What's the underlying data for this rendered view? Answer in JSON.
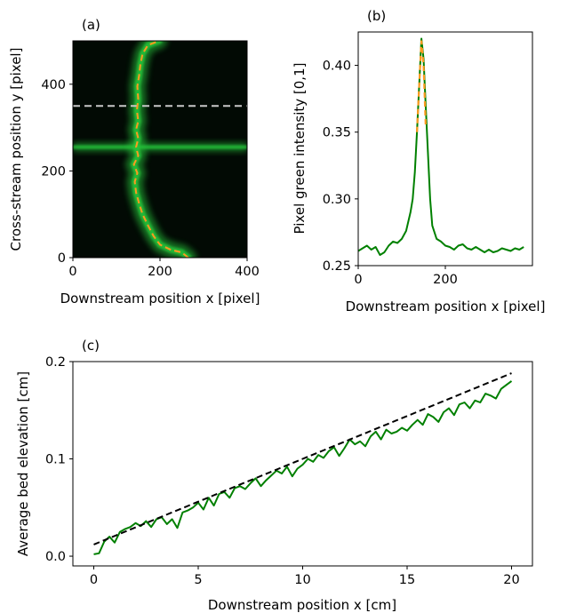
{
  "chart_data": [
    {
      "panel": "(a)",
      "type": "heatmap",
      "xlabel": "Downstream position  x  [pixel]",
      "ylabel": "Cross-stream position  y  [pixel]",
      "xlim": [
        0,
        400
      ],
      "ylim": [
        0,
        500
      ],
      "xticks": [
        0,
        200,
        400
      ],
      "yticks": [
        0,
        200,
        400
      ],
      "colors": {
        "background": "#020a04",
        "glow": "#27c43a",
        "channel": "#ff9a1f",
        "cut_line": "#c8c8c8"
      },
      "horizontal_band_y": 255,
      "cut_line_y": 350,
      "channel_path": [
        {
          "x": 265,
          "y": 0
        },
        {
          "x": 250,
          "y": 12
        },
        {
          "x": 225,
          "y": 18
        },
        {
          "x": 200,
          "y": 30
        },
        {
          "x": 185,
          "y": 50
        },
        {
          "x": 172,
          "y": 75
        },
        {
          "x": 160,
          "y": 100
        },
        {
          "x": 152,
          "y": 125
        },
        {
          "x": 145,
          "y": 150
        },
        {
          "x": 142,
          "y": 175
        },
        {
          "x": 148,
          "y": 195
        },
        {
          "x": 140,
          "y": 215
        },
        {
          "x": 150,
          "y": 235
        },
        {
          "x": 145,
          "y": 255
        },
        {
          "x": 150,
          "y": 275
        },
        {
          "x": 145,
          "y": 295
        },
        {
          "x": 150,
          "y": 315
        },
        {
          "x": 147,
          "y": 340
        },
        {
          "x": 150,
          "y": 365
        },
        {
          "x": 148,
          "y": 395
        },
        {
          "x": 152,
          "y": 420
        },
        {
          "x": 155,
          "y": 445
        },
        {
          "x": 160,
          "y": 470
        },
        {
          "x": 172,
          "y": 490
        },
        {
          "x": 198,
          "y": 500
        }
      ]
    },
    {
      "panel": "(b)",
      "type": "line",
      "xlabel": "Downstream position  x  [pixel]",
      "ylabel": "Pixel green intensity  [0,1]",
      "xlim": [
        0,
        400
      ],
      "ylim": [
        0.25,
        0.425
      ],
      "xticks": [
        0,
        200
      ],
      "yticks": [
        0.25,
        0.3,
        0.35,
        0.4
      ],
      "series": [
        {
          "color": "#008000",
          "style": "solid",
          "x": [
            0,
            10,
            20,
            30,
            40,
            50,
            60,
            70,
            80,
            90,
            100,
            110,
            120,
            125,
            130,
            135,
            140,
            145,
            150,
            155,
            160,
            165,
            170,
            180,
            190,
            200,
            210,
            220,
            230,
            240,
            250,
            260,
            270,
            280,
            290,
            300,
            310,
            320,
            330,
            340,
            350,
            360,
            370,
            380
          ],
          "y": [
            0.261,
            0.263,
            0.265,
            0.262,
            0.264,
            0.258,
            0.26,
            0.265,
            0.268,
            0.267,
            0.27,
            0.276,
            0.29,
            0.3,
            0.32,
            0.35,
            0.385,
            0.42,
            0.405,
            0.37,
            0.335,
            0.3,
            0.28,
            0.27,
            0.268,
            0.265,
            0.264,
            0.262,
            0.265,
            0.266,
            0.263,
            0.262,
            0.264,
            0.262,
            0.26,
            0.262,
            0.26,
            0.261,
            0.263,
            0.262,
            0.261,
            0.263,
            0.262,
            0.264
          ]
        },
        {
          "color": "#ff9a1f",
          "style": "dashed",
          "x": [
            135,
            140,
            145,
            150,
            155
          ],
          "y": [
            0.35,
            0.385,
            0.418,
            0.4,
            0.355
          ]
        }
      ]
    },
    {
      "panel": "(c)",
      "type": "line",
      "xlabel": "Downstream position  x  [cm]",
      "ylabel": "Average bed elevation  [cm]",
      "xlim": [
        -1,
        21
      ],
      "ylim": [
        -0.01,
        0.2
      ],
      "xticks": [
        0,
        5,
        10,
        15,
        20
      ],
      "yticks": [
        0.0,
        0.1,
        0.2
      ],
      "series": [
        {
          "color": "#008000",
          "style": "solid",
          "x": [
            0,
            0.25,
            0.5,
            0.75,
            1,
            1.25,
            1.5,
            1.75,
            2,
            2.25,
            2.5,
            2.75,
            3,
            3.25,
            3.5,
            3.75,
            4,
            4.25,
            4.5,
            4.75,
            5,
            5.25,
            5.5,
            5.75,
            6,
            6.25,
            6.5,
            6.75,
            7,
            7.25,
            7.5,
            7.75,
            8,
            8.25,
            8.5,
            8.75,
            9,
            9.25,
            9.5,
            9.75,
            10,
            10.25,
            10.5,
            10.75,
            11,
            11.25,
            11.5,
            11.75,
            12,
            12.25,
            12.5,
            12.75,
            13,
            13.25,
            13.5,
            13.75,
            14,
            14.25,
            14.5,
            14.75,
            15,
            15.25,
            15.5,
            15.75,
            16,
            16.25,
            16.5,
            16.75,
            17,
            17.25,
            17.5,
            17.75,
            18,
            18.25,
            18.5,
            18.75,
            19,
            19.25,
            19.5,
            19.75,
            20
          ],
          "y": [
            0.002,
            0.003,
            0.015,
            0.02,
            0.014,
            0.025,
            0.028,
            0.03,
            0.034,
            0.031,
            0.036,
            0.03,
            0.038,
            0.04,
            0.033,
            0.038,
            0.029,
            0.045,
            0.047,
            0.05,
            0.055,
            0.048,
            0.06,
            0.052,
            0.064,
            0.066,
            0.06,
            0.07,
            0.072,
            0.069,
            0.075,
            0.08,
            0.072,
            0.078,
            0.083,
            0.088,
            0.085,
            0.092,
            0.082,
            0.09,
            0.094,
            0.1,
            0.097,
            0.104,
            0.101,
            0.108,
            0.112,
            0.103,
            0.111,
            0.12,
            0.115,
            0.118,
            0.113,
            0.123,
            0.128,
            0.12,
            0.13,
            0.126,
            0.128,
            0.132,
            0.129,
            0.135,
            0.14,
            0.135,
            0.146,
            0.143,
            0.138,
            0.148,
            0.152,
            0.145,
            0.156,
            0.158,
            0.152,
            0.16,
            0.158,
            0.167,
            0.165,
            0.162,
            0.172,
            0.176,
            0.18
          ]
        },
        {
          "color": "#000000",
          "style": "dashed",
          "x": [
            0,
            20
          ],
          "y": [
            0.012,
            0.188
          ]
        }
      ]
    }
  ]
}
